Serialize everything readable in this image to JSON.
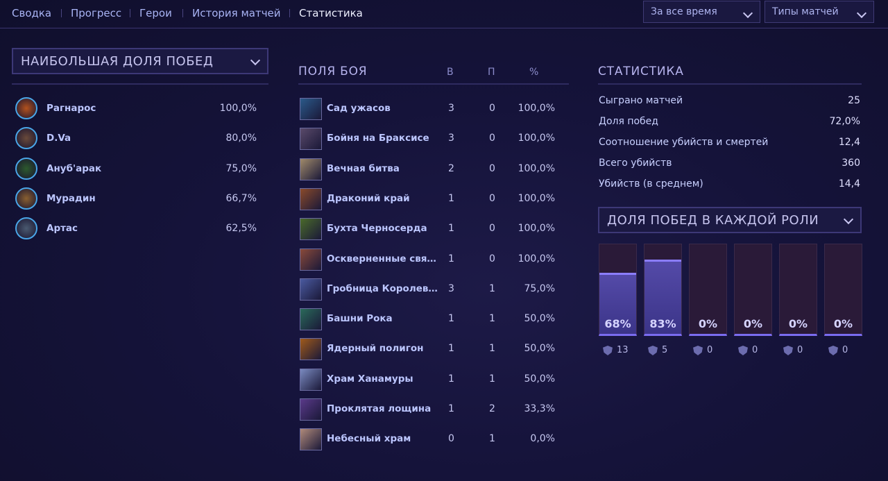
{
  "nav": {
    "items": [
      "Сводка",
      "Прогресс",
      "Герои",
      "История матчей",
      "Статистика"
    ],
    "active": 4
  },
  "filters": [
    "За все время",
    "Типы матчей"
  ],
  "heroes": {
    "title": "НАИБОЛЬШАЯ ДОЛЯ ПОБЕД",
    "rows": [
      [
        "Рагнарос",
        "100,0%"
      ],
      [
        "D.Va",
        "80,0%"
      ],
      [
        "Ануб'арак",
        "75,0%"
      ],
      [
        "Мурадин",
        "66,7%"
      ],
      [
        "Артас",
        "62,5%"
      ]
    ]
  },
  "battlegrounds": {
    "headers": [
      "ПОЛЯ БОЯ",
      "В",
      "П",
      "%"
    ],
    "rows": [
      [
        "Сад ужасов",
        3,
        0,
        "100,0%"
      ],
      [
        "Бойня на Браксисе",
        3,
        0,
        "100,0%"
      ],
      [
        "Вечная битва",
        2,
        0,
        "100,0%"
      ],
      [
        "Драконий край",
        1,
        0,
        "100,0%"
      ],
      [
        "Бухта Черносерда",
        1,
        0,
        "100,0%"
      ],
      [
        "Оскверненные свя…",
        1,
        0,
        "100,0%"
      ],
      [
        "Гробница Королев…",
        3,
        1,
        "75,0%"
      ],
      [
        "Башни Рока",
        1,
        1,
        "50,0%"
      ],
      [
        "Ядерный полигон",
        1,
        1,
        "50,0%"
      ],
      [
        "Храм Ханамуры",
        1,
        1,
        "50,0%"
      ],
      [
        "Проклятая лощина",
        1,
        2,
        "33,3%"
      ],
      [
        "Небесный храм",
        0,
        1,
        "0,0%"
      ]
    ]
  },
  "stats": {
    "title": "СТАТИСТИКА",
    "rows": [
      [
        "Сыграно матчей",
        25
      ],
      [
        "Доля побед",
        "72,0%"
      ],
      [
        "Соотношение убийств и смертей",
        "12,4"
      ],
      [
        "Всего убийств",
        360
      ],
      [
        "Убийств (в среднем)",
        "14,4"
      ]
    ]
  },
  "roles": {
    "title": "ДОЛЯ ПОБЕД В КАЖДОЙ РОЛИ",
    "ylim": [
      0,
      100
    ],
    "values": [
      68,
      83,
      0,
      0,
      0,
      0
    ],
    "value_labels": [
      "68%",
      "83%",
      "0%",
      "0%",
      "0%",
      "0%"
    ],
    "games": [
      13,
      5,
      0,
      0,
      0,
      0
    ]
  }
}
